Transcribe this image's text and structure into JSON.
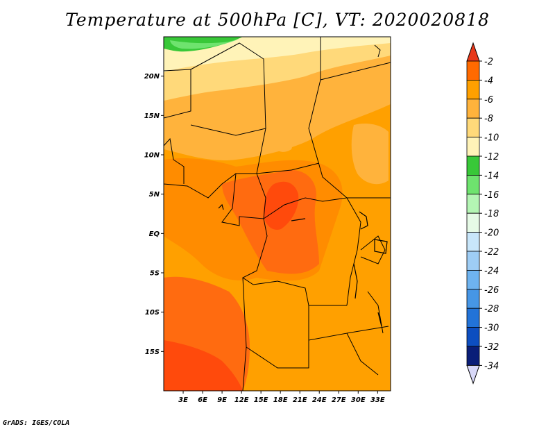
{
  "title": "Temperature at 500hPa [C], VT: 2020020818",
  "credit": "GrADS: IGES/COLA",
  "map": {
    "projection": "latlon",
    "lon_range": [
      0,
      35
    ],
    "lat_range": [
      -20,
      25
    ],
    "lat_ticks": [
      {
        "value": 20,
        "label": "20N"
      },
      {
        "value": 15,
        "label": "15N"
      },
      {
        "value": 10,
        "label": "10N"
      },
      {
        "value": 5,
        "label": "5N"
      },
      {
        "value": 0,
        "label": "EQ"
      },
      {
        "value": -5,
        "label": "5S"
      },
      {
        "value": -10,
        "label": "10S"
      },
      {
        "value": -15,
        "label": "15S"
      }
    ],
    "lon_ticks": [
      {
        "value": 3,
        "label": "3E"
      },
      {
        "value": 6,
        "label": "6E"
      },
      {
        "value": 9,
        "label": "9E"
      },
      {
        "value": 12,
        "label": "12E"
      },
      {
        "value": 15,
        "label": "15E"
      },
      {
        "value": 18,
        "label": "18E"
      },
      {
        "value": 21,
        "label": "21E"
      },
      {
        "value": 24,
        "label": "24E"
      },
      {
        "value": 27,
        "label": "27E"
      },
      {
        "value": 30,
        "label": "30E"
      },
      {
        "value": 33,
        "label": "33E"
      }
    ]
  },
  "colorbar": {
    "labels": [
      "-2",
      "-4",
      "-6",
      "-8",
      "-10",
      "-12",
      "-14",
      "-16",
      "-18",
      "-20",
      "-22",
      "-24",
      "-26",
      "-28",
      "-30",
      "-32",
      "-34"
    ],
    "colors": [
      "#e03b1d",
      "#ff6a00",
      "#ffa000",
      "#ffb33c",
      "#ffd97a",
      "#fff3b8",
      "#38c838",
      "#6ee36e",
      "#b4f5b4",
      "#e6fae6",
      "#c8e6fa",
      "#9ecdf5",
      "#6eb3f0",
      "#4696e6",
      "#2273d8",
      "#0d4ec0",
      "#0a1e78",
      "#1d0a60",
      "#d8d8f8"
    ],
    "top_color": "#e8381a",
    "bottom_color": "#d8d8f8"
  },
  "field_colors": {
    "t2": "#ff4a0c",
    "t3": "#ff6b10",
    "t4": "#ff8c00",
    "t5": "#ffa000",
    "t6": "#ffb33c",
    "t8": "#ffd97a",
    "t10": "#fff3b8",
    "t12": "#38c838",
    "t14": "#6ee36e"
  }
}
